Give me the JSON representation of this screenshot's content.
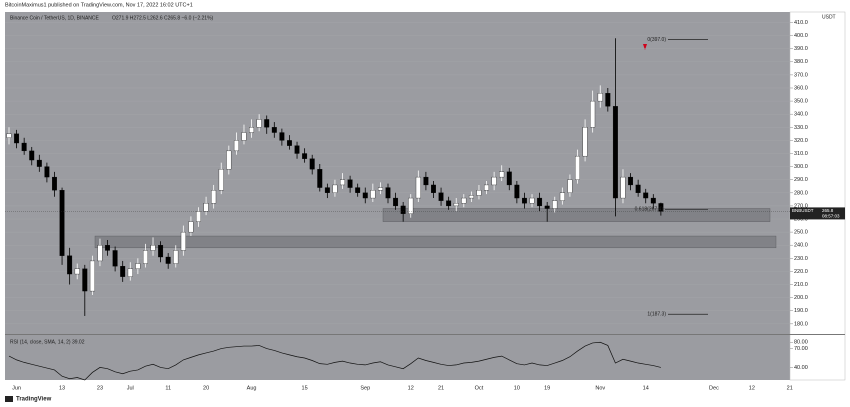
{
  "header": "BitcoinMaximus1 published on TradingView.com, Nov 17, 2022 16:02 UTC+1",
  "footer": "TradingView",
  "chart_data": [
    {
      "type": "candlestick",
      "legend_title": "Binance Coin / TetherUS, 1D, BINANCE",
      "legend_values": "O271.9 H272.5 L262.6 C265.8 −6.0 (−2.21%)",
      "axis_label": "USDT",
      "up_color": "#ffffff",
      "down_color": "#000000",
      "grid": true,
      "categories": [
        null,
        "Jun",
        null,
        null,
        null,
        null,
        null,
        "13",
        null,
        null,
        null,
        null,
        "23",
        null,
        null,
        null,
        "Jul",
        null,
        null,
        null,
        null,
        "11",
        null,
        null,
        null,
        null,
        "20",
        null,
        null,
        null,
        null,
        null,
        "Aug",
        null,
        null,
        null,
        null,
        null,
        null,
        "15",
        null,
        null,
        null,
        null,
        null,
        null,
        null,
        "Sep",
        null,
        null,
        null,
        null,
        null,
        "12",
        null,
        null,
        null,
        "21",
        null,
        null,
        null,
        null,
        "Oct",
        null,
        null,
        null,
        null,
        "10",
        null,
        null,
        null,
        "19",
        null,
        null,
        null,
        null,
        null,
        null,
        "Nov",
        null,
        null,
        null,
        null,
        null,
        "14",
        null,
        null,
        null,
        null,
        null,
        null,
        null,
        null,
        "Dec",
        null,
        null,
        null,
        null,
        "12",
        null,
        null,
        null,
        null,
        "21"
      ],
      "open": [
        322,
        325,
        318,
        312,
        305,
        300,
        292,
        282,
        232,
        218,
        222,
        205,
        228,
        240,
        236,
        224,
        216,
        222,
        226,
        236,
        240,
        231,
        226,
        236,
        250,
        258,
        266,
        272,
        282,
        298,
        312,
        320,
        326,
        330,
        336,
        330,
        326,
        320,
        316,
        310,
        306,
        298,
        284,
        280,
        286,
        290,
        284,
        280,
        276,
        282,
        284,
        276,
        270,
        264,
        276,
        292,
        286,
        280,
        274,
        270,
        272,
        276,
        278,
        282,
        286,
        292,
        296,
        286,
        276,
        272,
        276,
        270,
        268,
        274,
        280,
        290,
        308,
        330,
        350,
        356,
        346,
        276,
        292,
        286,
        280,
        276,
        271.9,
        null,
        null,
        null,
        null,
        null,
        null,
        null,
        null,
        null,
        null,
        null,
        null,
        null,
        null,
        null,
        null,
        null
      ],
      "high": [
        330,
        328,
        322,
        315,
        309,
        303,
        296,
        284,
        238,
        226,
        225,
        232,
        245,
        244,
        239,
        228,
        227,
        230,
        241,
        246,
        243,
        234,
        240,
        255,
        262,
        269,
        277,
        286,
        303,
        316,
        326,
        332,
        336,
        340,
        339,
        334,
        329,
        324,
        319,
        314,
        309,
        302,
        287,
        290,
        295,
        293,
        287,
        284,
        287,
        288,
        287,
        280,
        273,
        279,
        297,
        296,
        289,
        284,
        277,
        276,
        279,
        281,
        286,
        289,
        296,
        301,
        299,
        289,
        280,
        279,
        280,
        273,
        277,
        284,
        294,
        313,
        336,
        358,
        362,
        360,
        398,
        298,
        295,
        290,
        283,
        279,
        272.5,
        null,
        null,
        null,
        null,
        null,
        null,
        null,
        null,
        null,
        null,
        null,
        null,
        null,
        null,
        null,
        null,
        null
      ],
      "low": [
        317,
        314,
        309,
        301,
        296,
        288,
        277,
        225,
        210,
        214,
        186,
        202,
        224,
        232,
        220,
        212,
        213,
        218,
        223,
        232,
        227,
        222,
        223,
        232,
        247,
        254,
        263,
        268,
        279,
        294,
        309,
        317,
        322,
        327,
        325,
        322,
        316,
        313,
        306,
        303,
        294,
        281,
        276,
        277,
        283,
        280,
        277,
        272,
        273,
        279,
        272,
        267,
        258,
        261,
        273,
        282,
        276,
        270,
        267,
        266,
        269,
        273,
        275,
        279,
        282,
        289,
        282,
        272,
        268,
        269,
        266,
        258,
        265,
        271,
        277,
        287,
        304,
        326,
        345,
        342,
        262,
        272,
        282,
        277,
        272,
        268,
        262.6,
        null,
        null,
        null,
        null,
        null,
        null,
        null,
        null,
        null,
        null,
        null,
        null,
        null,
        null,
        null,
        null,
        null
      ],
      "close": [
        325,
        318,
        312,
        305,
        300,
        292,
        282,
        232,
        218,
        222,
        205,
        228,
        240,
        236,
        224,
        216,
        222,
        226,
        236,
        240,
        231,
        226,
        236,
        250,
        258,
        266,
        272,
        282,
        298,
        312,
        320,
        326,
        330,
        336,
        330,
        326,
        320,
        316,
        310,
        306,
        298,
        284,
        280,
        286,
        290,
        284,
        280,
        276,
        282,
        284,
        276,
        270,
        264,
        276,
        292,
        286,
        280,
        274,
        270,
        272,
        276,
        278,
        282,
        286,
        292,
        296,
        286,
        276,
        272,
        276,
        270,
        268,
        274,
        280,
        290,
        308,
        330,
        350,
        356,
        346,
        276,
        292,
        286,
        280,
        276,
        272,
        265.8,
        null,
        null,
        null,
        null,
        null,
        null,
        null,
        null,
        null,
        null,
        null,
        null,
        null,
        null,
        null,
        null,
        null
      ],
      "ylim": [
        173,
        418
      ],
      "yticks": [
        {
          "value": 180,
          "label": "180.0"
        },
        {
          "value": 190,
          "label": "190.0"
        },
        {
          "value": 200,
          "label": "200.0"
        },
        {
          "value": 210,
          "label": "210.0"
        },
        {
          "value": 220,
          "label": "220.0"
        },
        {
          "value": 230,
          "label": "230.0"
        },
        {
          "value": 240,
          "label": "240.0"
        },
        {
          "value": 250,
          "label": "250.0"
        },
        {
          "value": 260,
          "label": "260.0"
        },
        {
          "value": 270,
          "label": "270.0"
        },
        {
          "value": 280,
          "label": "280.0"
        },
        {
          "value": 290,
          "label": "290.0"
        },
        {
          "value": 300,
          "label": "300.0"
        },
        {
          "value": 310,
          "label": "310.0"
        },
        {
          "value": 320,
          "label": "320.0"
        },
        {
          "value": 330,
          "label": "330.0"
        },
        {
          "value": 340,
          "label": "340.0"
        },
        {
          "value": 350,
          "label": "350.0"
        },
        {
          "value": 360,
          "label": "360.0"
        },
        {
          "value": 370,
          "label": "370.0"
        },
        {
          "value": 380,
          "label": "380.0"
        },
        {
          "value": 390,
          "label": "390.0"
        },
        {
          "value": 400,
          "label": "400.0"
        },
        {
          "value": 410,
          "label": "410.0"
        }
      ],
      "zones": [
        {
          "low": 258,
          "high": 268
        },
        {
          "low": 238,
          "high": 247
        }
      ],
      "annotations": [
        {
          "label": "0(397.0)",
          "value": 397.0
        },
        {
          "label": "0.618(267.4)",
          "value": 267.4
        },
        {
          "label": "1(187.3)",
          "value": 187.3
        }
      ],
      "price_label": {
        "symbol": "BNBUSDT",
        "price": "265.8",
        "value": 265.8,
        "countdown": "08:57:03"
      }
    },
    {
      "type": "line",
      "title": "RSI (14, close, SMA, 14, 2)  39.02",
      "series": [
        {
          "color": "#111111",
          "values": [
            58,
            52,
            48,
            45,
            42,
            39,
            36,
            26,
            22,
            24,
            20,
            32,
            40,
            38,
            33,
            30,
            34,
            36,
            42,
            45,
            40,
            38,
            44,
            52,
            56,
            60,
            63,
            66,
            70,
            72,
            73,
            74,
            74,
            75,
            70,
            67,
            63,
            60,
            57,
            55,
            51,
            46,
            45,
            48,
            50,
            47,
            45,
            44,
            47,
            49,
            44,
            41,
            38,
            46,
            55,
            51,
            48,
            45,
            43,
            44,
            47,
            48,
            50,
            53,
            56,
            58,
            52,
            46,
            44,
            47,
            44,
            43,
            47,
            51,
            57,
            66,
            74,
            79,
            80,
            75,
            47,
            53,
            50,
            47,
            45,
            43,
            40,
            null,
            null,
            null,
            null,
            null,
            null,
            null,
            null,
            null,
            null,
            null,
            null,
            null,
            null,
            null,
            null,
            null
          ]
        }
      ],
      "ylim": [
        20,
        90
      ],
      "yticks": [
        {
          "value": 80,
          "label": "80.00"
        },
        {
          "value": 70,
          "label": "70.00"
        },
        {
          "value": 40,
          "label": "40.00"
        }
      ]
    }
  ]
}
